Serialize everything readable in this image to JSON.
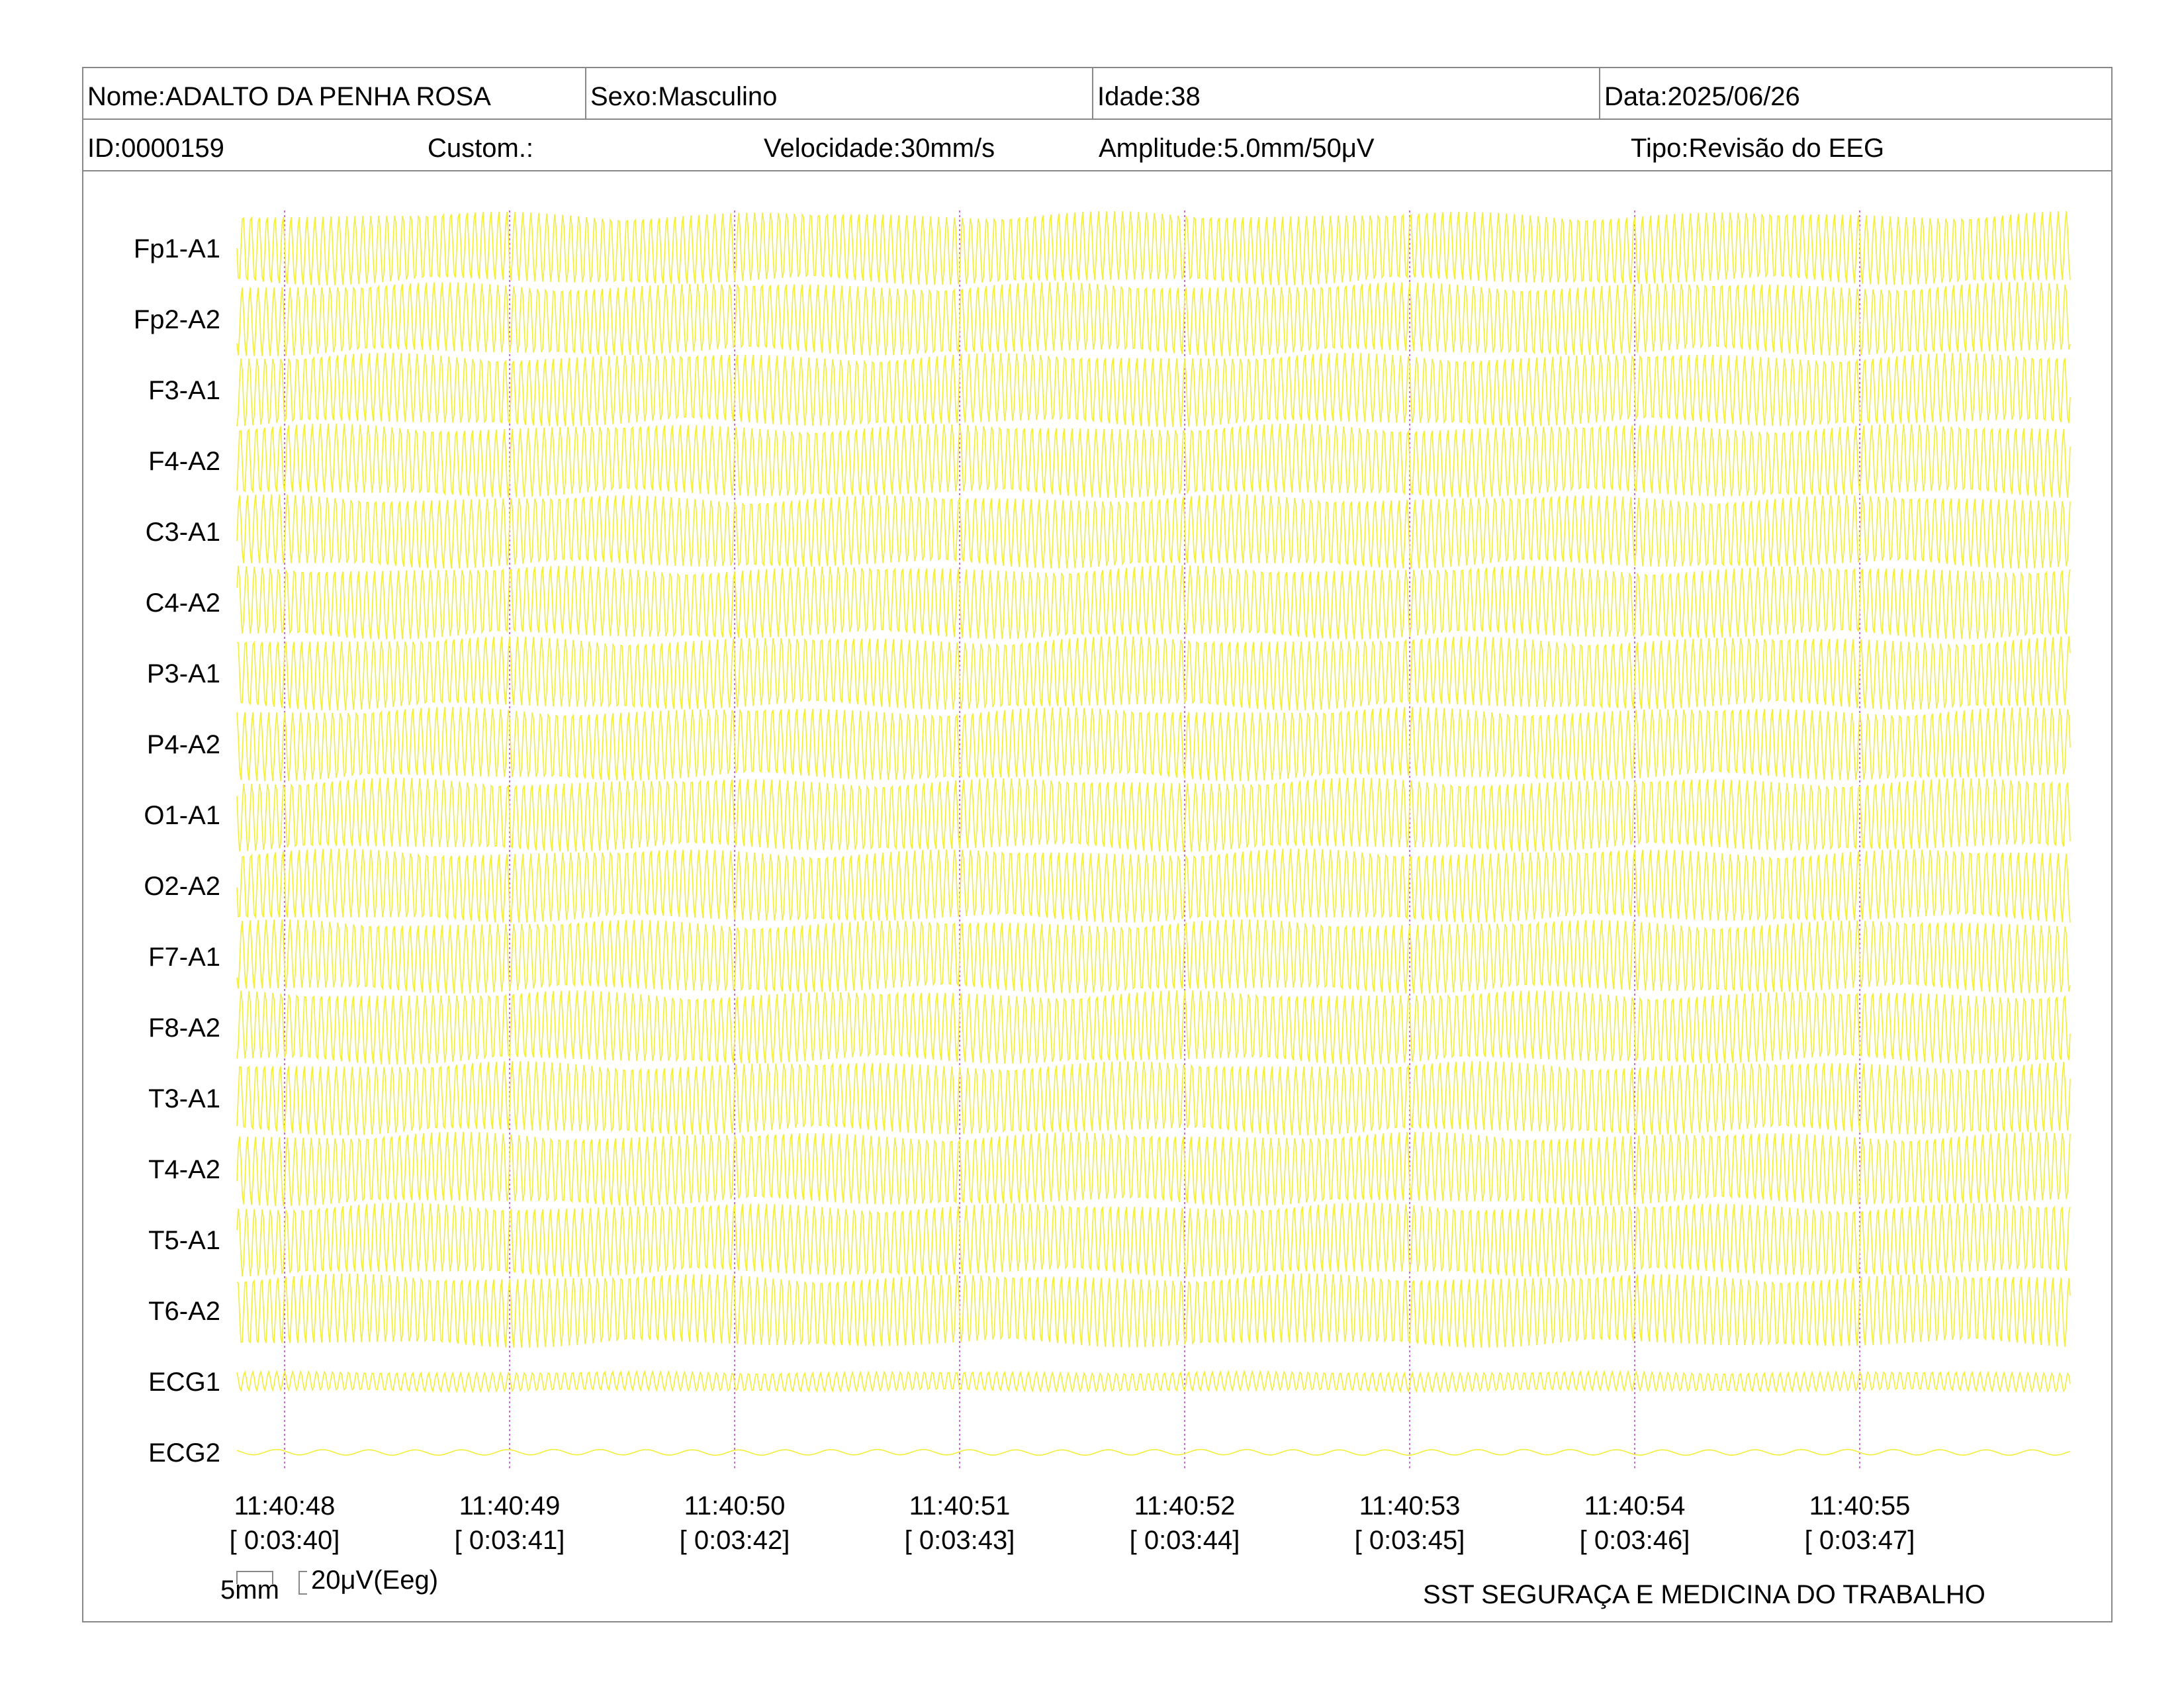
{
  "header": {
    "nome": "Nome:ADALTO DA PENHA ROSA",
    "sexo": "Sexo:Masculino",
    "idade": "Idade:38",
    "data": "Data:2025/06/26",
    "id": "ID:0000159",
    "custom": "Custom.:",
    "velocidade": "Velocidade:30mm/s",
    "amplitude": "Amplitude:5.0mm/50μV",
    "tipo": "Tipo:Revisão do EEG"
  },
  "footer": {
    "scale_time": "5mm",
    "scale_amp": "20μV(Eeg)",
    "clinic": "SST SEGURAÇA E MEDICINA DO TRABALHO"
  },
  "colors": {
    "trace": "#f2ee3a",
    "marker": "#d46ad4",
    "border": "#888888",
    "text": "#000000"
  },
  "chart_data": {
    "type": "line",
    "channels": [
      "Fp1-A1",
      "Fp2-A2",
      "F3-A1",
      "F4-A2",
      "C3-A1",
      "C4-A2",
      "P3-A1",
      "P4-A2",
      "O1-A1",
      "O2-A2",
      "F7-A1",
      "F8-A2",
      "T3-A1",
      "T4-A2",
      "T5-A1",
      "T6-A2",
      "ECG1",
      "ECG2"
    ],
    "time_labels": [
      "11:40:48",
      "11:40:49",
      "11:40:50",
      "11:40:51",
      "11:40:52",
      "11:40:53",
      "11:40:54",
      "11:40:55"
    ],
    "elapsed_labels": [
      "[ 0:03:40]",
      "[ 0:03:41]",
      "[ 0:03:42]",
      "[ 0:03:43]",
      "[ 0:03:44]",
      "[ 0:03:45]",
      "[ 0:03:46]",
      "[ 0:03:47]"
    ],
    "speed_mm_per_s": 30,
    "amplitude_mm_per_50uV": 5.0
  }
}
